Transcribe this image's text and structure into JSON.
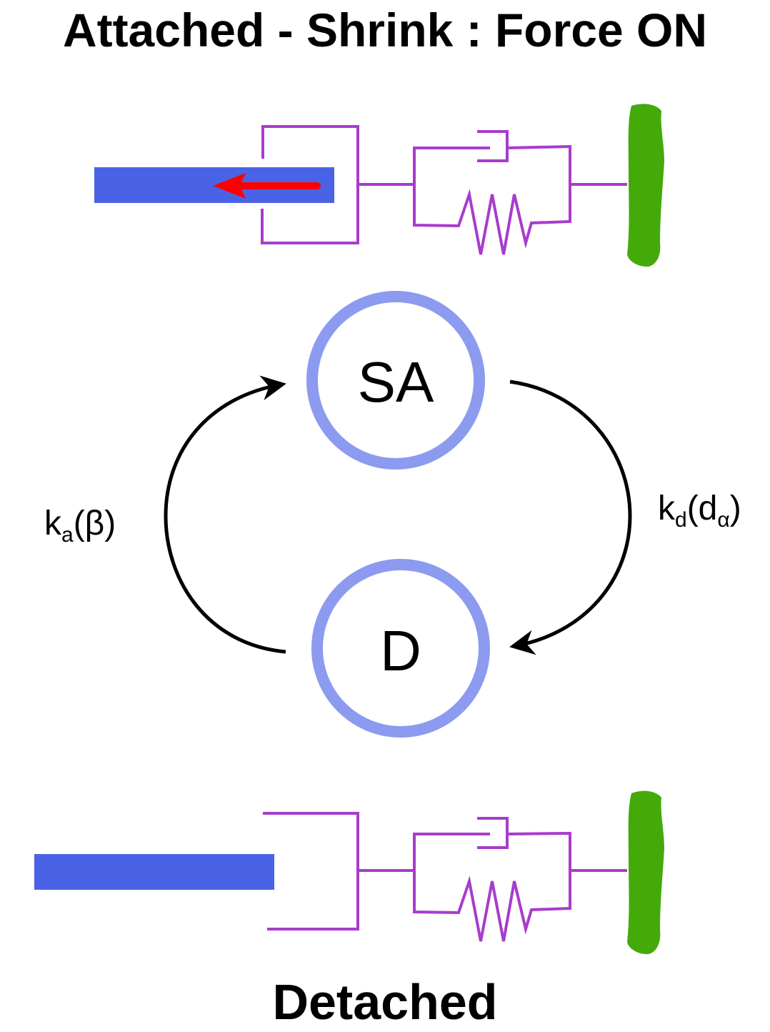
{
  "header": {
    "title": "Attached - Shrink : Force ON"
  },
  "footer": {
    "title": "Detached"
  },
  "states": {
    "attached": {
      "label": "SA"
    },
    "detached": {
      "label": "D"
    }
  },
  "transitions": {
    "attach": {
      "k": "k",
      "sub": "a",
      "arg": "(β)"
    },
    "detach": {
      "k": "k",
      "sub": "d",
      "paren_open": "(d",
      "arg_sub": "α",
      "paren_close": ")"
    }
  },
  "colors": {
    "filament": "#4a63e6",
    "linker": "#a83ccc",
    "anchor": "#44aa0a",
    "force_arrow": "#ff0000",
    "state_ring": "#8c9bef",
    "arrow": "#000000"
  },
  "icons": {
    "force": "force-arrow-icon",
    "damper": "dashpot-icon",
    "spring": "spring-icon",
    "anchor": "anchor-blob-icon"
  }
}
